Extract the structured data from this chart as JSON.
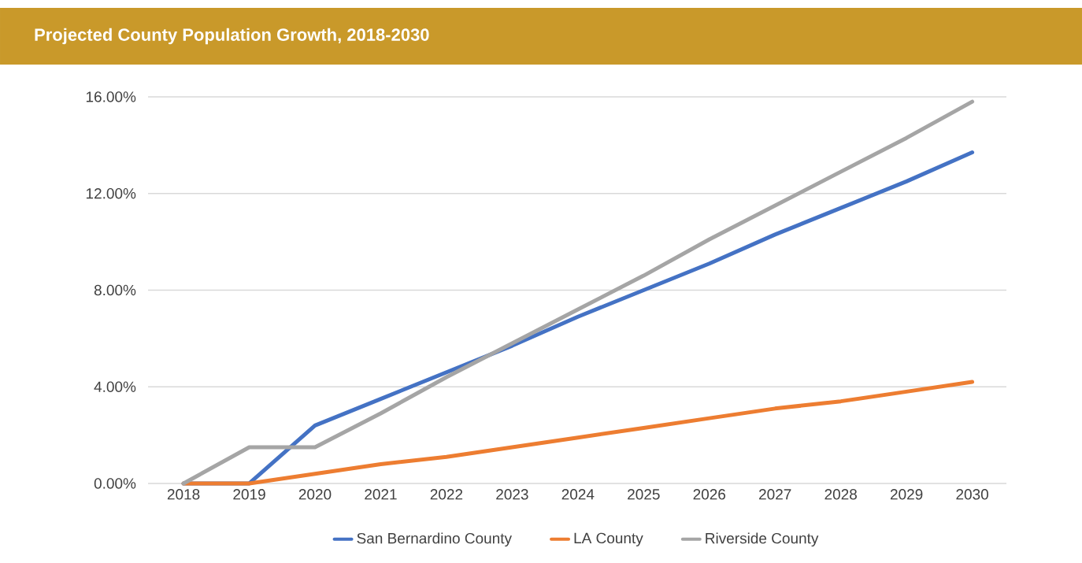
{
  "chart_data": {
    "type": "line",
    "title": "Projected County Population Growth, 2018-2030",
    "categories": [
      "2018",
      "2019",
      "2020",
      "2021",
      "2022",
      "2023",
      "2024",
      "2025",
      "2026",
      "2027",
      "2028",
      "2029",
      "2030"
    ],
    "series": [
      {
        "name": "San Bernardino County",
        "color": "#4472c4",
        "values": [
          0,
          0,
          2.4,
          3.5,
          4.6,
          5.7,
          6.9,
          8.0,
          9.1,
          10.3,
          11.4,
          12.5,
          13.7
        ]
      },
      {
        "name": "LA County",
        "color": "#ed7d31",
        "values": [
          0,
          0,
          0.4,
          0.8,
          1.1,
          1.5,
          1.9,
          2.3,
          2.7,
          3.1,
          3.4,
          3.8,
          4.2
        ]
      },
      {
        "name": "Riverside County",
        "color": "#a5a5a5",
        "values": [
          0,
          1.5,
          1.5,
          2.9,
          4.4,
          5.8,
          7.2,
          8.6,
          10.1,
          11.5,
          12.9,
          14.3,
          15.8
        ]
      }
    ],
    "ylim": [
      0,
      16
    ],
    "yticks": [
      {
        "value": 0,
        "label": "0.00%"
      },
      {
        "value": 4,
        "label": "4.00%"
      },
      {
        "value": 8,
        "label": "8.00%"
      },
      {
        "value": 12,
        "label": "12.00%"
      },
      {
        "value": 16,
        "label": "16.00%"
      }
    ],
    "grid": "y",
    "legend": "bottom"
  }
}
